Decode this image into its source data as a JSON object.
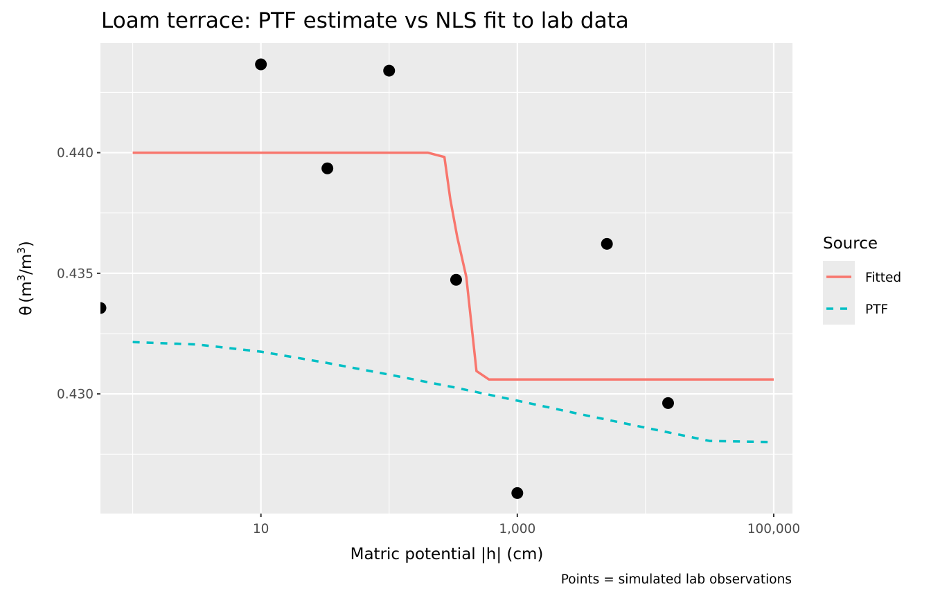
{
  "chart_data": {
    "type": "line",
    "title": "Loam terrace: PTF estimate vs NLS fit to lab data",
    "xlabel": "Matric potential |h| (cm)",
    "ylabel": "θ (m³/m³)",
    "ylabel_parts": {
      "symbol": "θ",
      "open": "(m",
      "sup1": "3",
      "mid": "/m",
      "sup2": "3",
      "close": ")"
    },
    "caption": "Points = simulated lab observations",
    "x_scale": "log10",
    "xlim": [
      0.56,
      140000
    ],
    "ylim": [
      0.42504,
      0.44455
    ],
    "x_ticks": [
      {
        "value": 10,
        "label": "10"
      },
      {
        "value": 1000,
        "label": "1,000"
      },
      {
        "value": 100000,
        "label": "100,000"
      }
    ],
    "x_minor": [
      1,
      100,
      10000
    ],
    "y_ticks": [
      {
        "value": 0.44,
        "label": "0.440"
      },
      {
        "value": 0.435,
        "label": "0.435"
      },
      {
        "value": 0.43,
        "label": "0.430"
      }
    ],
    "y_minor": [
      0.4425,
      0.4375,
      0.4325,
      0.4275
    ],
    "grid": true,
    "legend": {
      "title": "Source",
      "placement": "right",
      "entries": [
        {
          "label": "Fitted",
          "color": "#F8766D",
          "linetype": "solid"
        },
        {
          "label": "PTF",
          "color": "#00BFC4",
          "linetype": "dashed"
        }
      ]
    },
    "series": [
      {
        "name": "Fitted",
        "color": "#F8766D",
        "linetype": "solid",
        "x": [
          1,
          200,
          270,
          300,
          340,
          400,
          480,
          600,
          100000
        ],
        "y": [
          0.44,
          0.44,
          0.43982,
          0.43807,
          0.4365,
          0.43485,
          0.43095,
          0.4306,
          0.4306
        ]
      },
      {
        "name": "PTF",
        "color": "#00BFC4",
        "linetype": "dashed",
        "x": [
          1,
          3.16,
          10,
          31.6,
          100,
          316,
          1000,
          3162,
          10000,
          31623,
          100000
        ],
        "y": [
          0.43215,
          0.43205,
          0.43175,
          0.4313,
          0.4308,
          0.43028,
          0.42972,
          0.42915,
          0.4286,
          0.42805,
          0.428
        ]
      }
    ],
    "points": {
      "name": "Lab observations",
      "color": "#000000",
      "x": [
        0.56,
        10,
        33,
        100,
        333,
        1000,
        5000,
        15000
      ],
      "y": [
        0.43356,
        0.44366,
        0.43935,
        0.4434,
        0.43473,
        0.42589,
        0.43622,
        0.42962
      ]
    }
  }
}
